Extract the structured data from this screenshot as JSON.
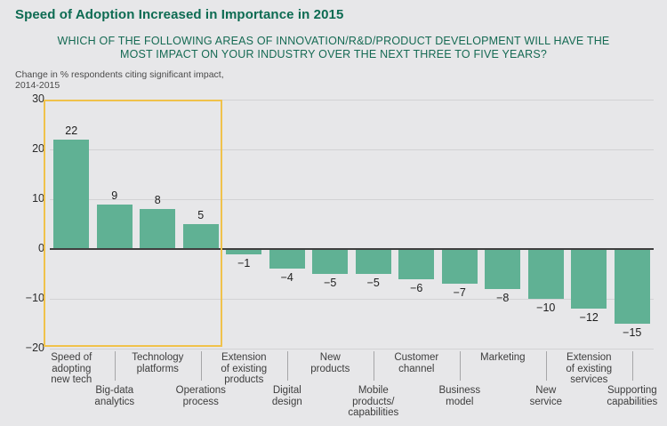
{
  "page": {
    "title": "Speed of Adoption Increased in Importance in 2015",
    "subtitle_line1": "WHICH OF THE FOLLOWING AREAS OF INNOVATION/R&D/PRODUCT DEVELOPMENT WILL HAVE THE",
    "subtitle_line2": "MOST IMPACT ON YOUR INDUSTRY OVER THE NEXT THREE TO FIVE YEARS?",
    "axis_note_line1": "Change in % respondents citing significant impact,",
    "axis_note_line2": "2014-2015"
  },
  "colors": {
    "background": "#e7e7e9",
    "bar": "#60b194",
    "title_green": "#0d6b52",
    "highlight_box": "#f0c24b",
    "gridline": "#d2d2d4",
    "zero_line": "#3f3f3f",
    "tick_text": "#2b2b2b",
    "category_text": "#3d3d3d",
    "note_text": "#4a4a4a"
  },
  "chart_data": {
    "type": "bar",
    "title": "Speed of Adoption Increased in Importance in 2015",
    "question": "WHICH OF THE FOLLOWING AREAS OF INNOVATION/R&D/PRODUCT DEVELOPMENT WILL HAVE THE MOST IMPACT ON YOUR INDUSTRY OVER THE NEXT THREE TO FIVE YEARS?",
    "ylabel": "Change in % respondents citing significant impact, 2014-2015",
    "categories": [
      "Speed of adopting new tech",
      "Big-data analytics",
      "Technology platforms",
      "Operations process",
      "Extension of existing products",
      "Digital design",
      "New products",
      "Mobile products/capabilities",
      "Customer channel",
      "Business model",
      "Marketing",
      "New service",
      "Extension of existing services",
      "Supporting capabilities"
    ],
    "values": [
      22,
      9,
      8,
      5,
      -1,
      -4,
      -5,
      -5,
      -6,
      -7,
      -8,
      -10,
      -12,
      -15
    ],
    "tick_lines": [
      [
        "Speed of",
        "adopting",
        "new tech"
      ],
      [
        "Big-data",
        "analytics"
      ],
      [
        "Technology",
        "platforms"
      ],
      [
        "Operations",
        "process"
      ],
      [
        "Extension",
        "of existing",
        "products"
      ],
      [
        "Digital",
        "design"
      ],
      [
        "New",
        "products"
      ],
      [
        "Mobile",
        "products/",
        "capabilities"
      ],
      [
        "Customer",
        "channel"
      ],
      [
        "Business",
        "model"
      ],
      [
        "Marketing"
      ],
      [
        "New",
        "service"
      ],
      [
        "Extension",
        "of existing",
        "services"
      ],
      [
        "Supporting",
        "capabilities"
      ]
    ],
    "ylim": [
      -20,
      30
    ],
    "yticks": [
      30,
      20,
      10,
      0,
      -10,
      -20
    ],
    "grid": true,
    "legend": "none",
    "bar_color": "#60b194",
    "value_labels": true,
    "highlighted_categories": [
      "Speed of adopting new tech",
      "Big-data analytics",
      "Technology platforms",
      "Operations process"
    ],
    "highlight_color": "#f0c24b"
  }
}
